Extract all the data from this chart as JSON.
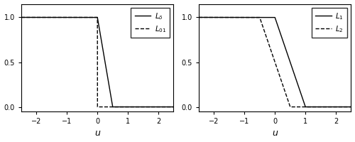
{
  "xlim": [
    -2.5,
    2.5
  ],
  "ylim": [
    -0.05,
    1.15
  ],
  "xticks": [
    -2,
    -1,
    0,
    1,
    2
  ],
  "ytick_vals": [
    0.0,
    0.5,
    1.0
  ],
  "ytick_labels": [
    "0.0",
    "0.5",
    "1.0"
  ],
  "xlabel": "u",
  "delta": 0.5,
  "fig_width": 5.0,
  "fig_height": 2.0,
  "line_color": "#000000",
  "bg_color": "#ffffff",
  "lw": 1.0,
  "spine_lw": 0.8,
  "tick_fontsize": 7,
  "label_fontsize": 9,
  "legend_fontsize": 7.5
}
